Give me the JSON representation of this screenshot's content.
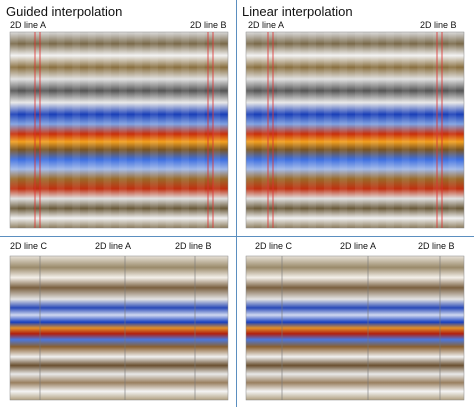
{
  "panels": [
    {
      "title": "Guided interpolation",
      "top": {
        "labels": [
          "2D line A",
          "2D line B"
        ]
      },
      "bottom": {
        "labels": [
          "2D line C",
          "2D line A",
          "2D line B"
        ]
      }
    },
    {
      "title": "Linear interpolation",
      "top": {
        "labels": [
          "2D line A",
          "2D line B"
        ]
      },
      "bottom": {
        "labels": [
          "2D line C",
          "2D line A",
          "2D line B"
        ]
      }
    }
  ]
}
